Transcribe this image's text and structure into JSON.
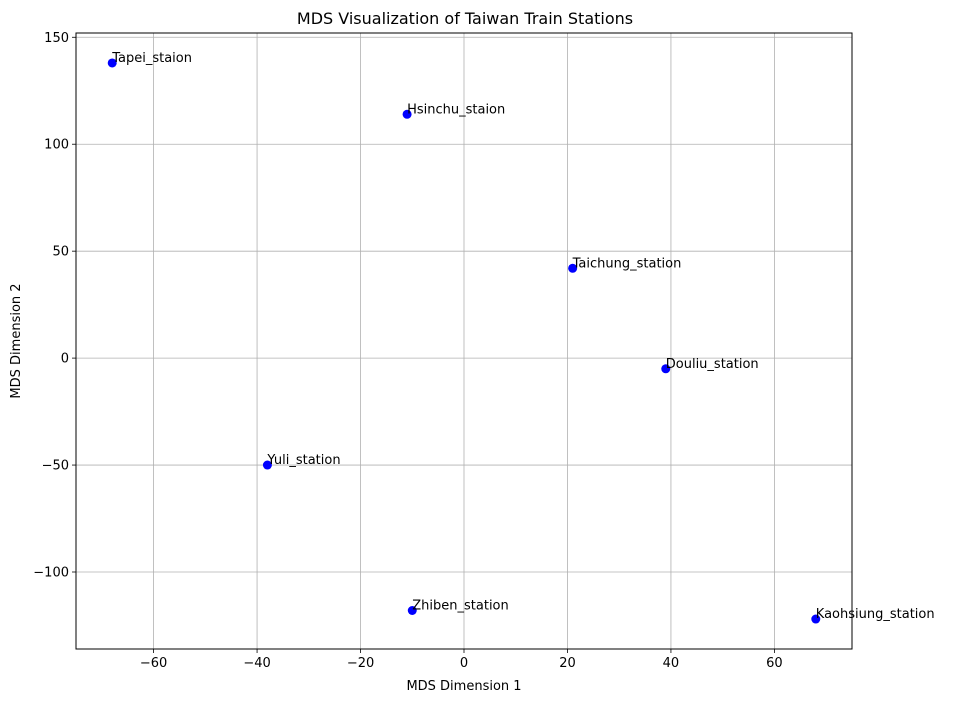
{
  "chart_data": {
    "type": "scatter",
    "title": "MDS Visualization of Taiwan Train Stations",
    "xlabel": "MDS Dimension 1",
    "ylabel": "MDS Dimension 2",
    "xlim": [
      -75,
      75
    ],
    "ylim": [
      -136,
      152
    ],
    "xticks": [
      -60,
      -40,
      -20,
      0,
      20,
      40,
      60
    ],
    "yticks": [
      -100,
      -50,
      0,
      50,
      100,
      150
    ],
    "xtick_labels": [
      "−60",
      "−40",
      "−20",
      "0",
      "20",
      "40",
      "60"
    ],
    "ytick_labels": [
      "−100",
      "−50",
      "0",
      "50",
      "100",
      "150"
    ],
    "grid": true,
    "marker_color": "#0000ff",
    "grid_color": "#b0b0b0",
    "points": [
      {
        "label": "Tapei_staion",
        "x": -68,
        "y": 138
      },
      {
        "label": "Hsinchu_staion",
        "x": -11,
        "y": 114
      },
      {
        "label": "Taichung_station",
        "x": 21,
        "y": 42
      },
      {
        "label": "Douliu_station",
        "x": 39,
        "y": -5
      },
      {
        "label": "Yuli_station",
        "x": -38,
        "y": -50
      },
      {
        "label": "Zhiben_station",
        "x": -10,
        "y": -118
      },
      {
        "label": "Kaohsiung_station",
        "x": 68,
        "y": -122
      }
    ]
  }
}
